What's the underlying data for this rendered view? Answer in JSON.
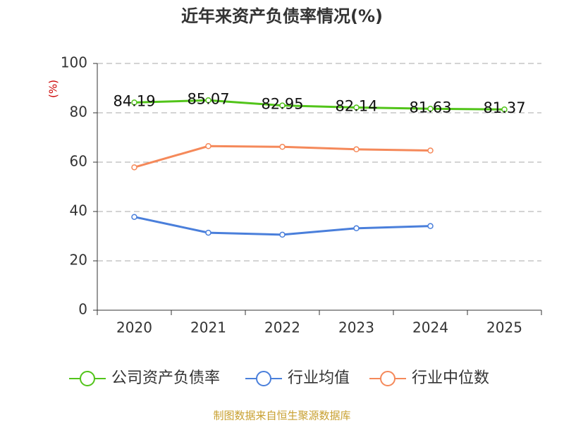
{
  "chart_data": {
    "type": "line",
    "title": "近年来资产负债率情况(%)",
    "y_label": "(%)",
    "categories": [
      "2020",
      "2021",
      "2022",
      "2023",
      "2024",
      "2025"
    ],
    "series": [
      {
        "name": "公司资产负债率",
        "color": "#52c41a",
        "values": [
          84.19,
          85.07,
          82.95,
          82.14,
          81.63,
          81.37
        ],
        "show_labels": true
      },
      {
        "name": "行业均值",
        "color": "#4a7fdb",
        "values": [
          37.8,
          31.4,
          30.6,
          33.2,
          34.1,
          null
        ]
      },
      {
        "name": "行业中位数",
        "color": "#f5895a",
        "values": [
          57.9,
          66.5,
          66.2,
          65.2,
          64.7,
          null
        ]
      }
    ],
    "ylim": [
      0,
      100
    ],
    "yticks": [
      0,
      20,
      40,
      60,
      80,
      100
    ],
    "grid": true,
    "source": "制图数据来自恒生聚源数据库"
  }
}
